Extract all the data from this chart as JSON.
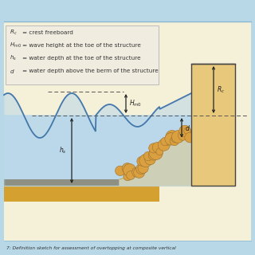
{
  "bg_outer": "#b8d8e8",
  "bg_inner": "#f5f0d8",
  "water_color": "#b8d8ea",
  "water_edge": "#4477aa",
  "wall_color": "#e8c87a",
  "sand_color": "#e8c87a",
  "sand_dark": "#d4a030",
  "caption": "7: Definition sketch for assessment of overtopping at composite vertical",
  "legend_entries": [
    [
      "= crest freeboard"
    ],
    [
      "= wave height at the toe of the structure"
    ],
    [
      "= water depth at the toe of the structure"
    ],
    [
      "= water depth above the berm of the structure"
    ]
  ],
  "legend_symbols": [
    "R_c",
    "H_m0",
    "h_s",
    "d"
  ]
}
